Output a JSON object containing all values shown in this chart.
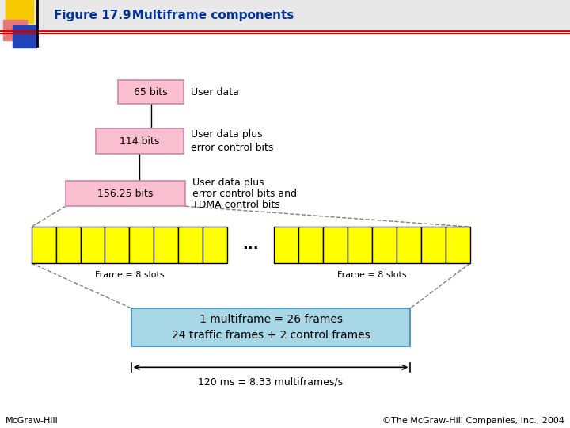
{
  "title_bold": "Figure 17.9",
  "title_normal": "   Multiframe components",
  "bg_color": "#ffffff",
  "header_bg": "#e8e8e8",
  "pink_fill": "#f9bfd0",
  "pink_edge": "#cc88aa",
  "yellow_fill": "#ffff00",
  "yellow_edge": "#000000",
  "cyan_fill": "#a8d8e8",
  "cyan_edge": "#5599bb",
  "box1_label": "65 bits",
  "box2_label": "114 bits",
  "box3_label": "156.25 bits",
  "label1": "User data",
  "label2_line1": "User data plus",
  "label2_line2": "error control bits",
  "label3_line1": "User data plus",
  "label3_line2": "error control bits and",
  "label3_line3": "TDMA control bits",
  "frame_label": "Frame = 8 slots",
  "mf_line1": "1 multiframe = 26 frames",
  "mf_line2": "24 traffic frames + 2 control frames",
  "timing_label": "120 ms = 8.33 multiframes/s",
  "footer_left": "McGraw-Hill",
  "footer_right": "©The McGraw-Hill Companies, Inc., 2004",
  "title_color": "#003399",
  "text_color": "#000000",
  "num_slots": 8
}
